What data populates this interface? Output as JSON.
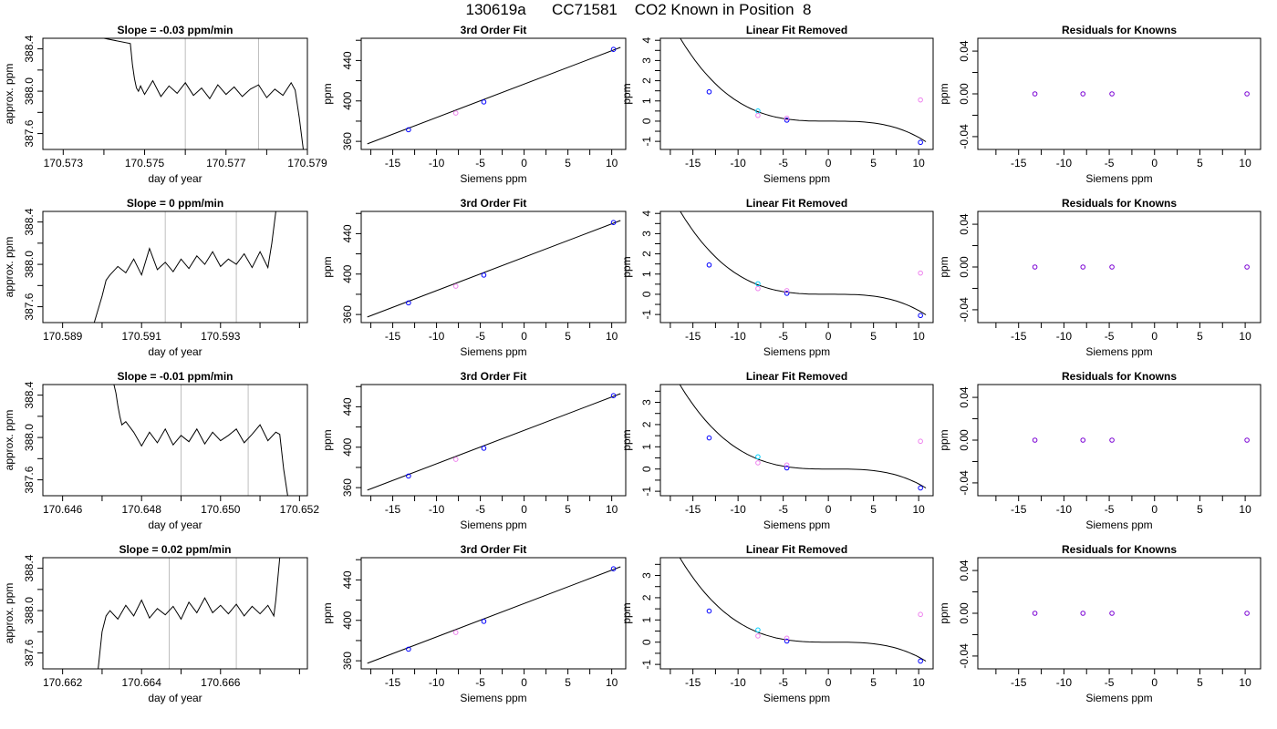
{
  "figure": {
    "title": "130619a      CC71581    CO2 Known in Position  8"
  },
  "chart_data": [
    {
      "type": "line",
      "title": "Slope =  -0.03  ppm/min",
      "xlabel": "day of year",
      "ylabel": "approx. ppm",
      "xlim": [
        170.5725,
        170.579
      ],
      "ylim": [
        387.45,
        388.5
      ],
      "xticks": [
        "170.573",
        "170.575",
        "170.577",
        "170.579"
      ],
      "yticks": [
        "387.6",
        "388.0",
        "388.4"
      ],
      "vlines": [
        170.576,
        170.5778
      ],
      "series": [
        {
          "x": [
            170.574,
            170.57465,
            170.5747,
            170.57475,
            170.5748,
            170.57485,
            170.5749,
            170.575,
            170.5752,
            170.5754,
            170.5756,
            170.5758,
            170.576,
            170.5762,
            170.5764,
            170.5766,
            170.5768,
            170.577,
            170.5772,
            170.5774,
            170.5776,
            170.5778,
            170.578,
            170.5782,
            170.5784,
            170.5786,
            170.5787,
            170.5788,
            170.5789
          ],
          "y": [
            388.5,
            388.45,
            388.25,
            388.12,
            388.03,
            388.0,
            388.05,
            387.97,
            388.1,
            387.95,
            388.05,
            387.98,
            388.08,
            387.96,
            388.03,
            387.93,
            388.06,
            387.97,
            388.04,
            387.95,
            388.02,
            388.06,
            387.94,
            388.02,
            387.96,
            388.08,
            388.01,
            387.75,
            387.45
          ]
        }
      ]
    },
    {
      "type": "scatter",
      "title": "3rd Order Fit",
      "xlabel": "Siemens ppm",
      "ylabel": "ppm",
      "xlim": [
        -18.6,
        11.6
      ],
      "ylim": [
        352,
        462
      ],
      "xticks": [
        "-15",
        "-10",
        "-5",
        "0",
        "5",
        "10"
      ],
      "yticks": [
        "360",
        "400",
        "440"
      ],
      "series": [
        {
          "x": [
            -13.2,
            -7.8,
            -4.6,
            10.2
          ],
          "y": [
            371.5,
            388.0,
            399.0,
            451.0
          ],
          "colors": [
            "#0000ff",
            "#ee82ee",
            "#0000ff",
            "#0000ff"
          ]
        }
      ],
      "fit_line": {
        "x": [
          -17.9,
          11.0
        ],
        "y": [
          357.5,
          453.0
        ]
      }
    },
    {
      "type": "scatter",
      "title": "Linear Fit Removed",
      "xlabel": "Siemens ppm",
      "ylabel": "ppm",
      "xlim": [
        -18.6,
        11.6
      ],
      "ylim": [
        -1.4,
        4.1
      ],
      "xticks": [
        "-15",
        "-10",
        "-5",
        "0",
        "5",
        "10"
      ],
      "yticks": [
        "-1",
        "0",
        "1",
        "2",
        "3",
        "4"
      ],
      "series": [
        {
          "name": "blue",
          "color": "#0000ff",
          "x": [
            -13.2,
            -4.6,
            10.2
          ],
          "y": [
            1.45,
            0.05,
            -1.05
          ]
        },
        {
          "name": "cyan",
          "color": "#00cfff",
          "x": [
            -7.8
          ],
          "y": [
            0.5
          ]
        },
        {
          "name": "violet",
          "color": "#ee82ee",
          "x": [
            -7.8,
            -4.6,
            10.2
          ],
          "y": [
            0.28,
            0.15,
            1.05
          ]
        }
      ],
      "curve": {
        "xs": 0.3,
        "a": 0.00088,
        "x0": -18.0,
        "x1": 10.8
      }
    },
    {
      "type": "scatter",
      "title": "Residuals for Knowns",
      "xlabel": "Siemens ppm",
      "ylabel": "ppm",
      "xlim": [
        -19.5,
        11.7
      ],
      "ylim": [
        -0.052,
        0.052
      ],
      "xticks": [
        "-15",
        "-10",
        "-5",
        "0",
        "5",
        "10"
      ],
      "yticks": [
        "-0.04",
        "0.00",
        "0.04"
      ],
      "series": [
        {
          "color": "#7a00d4",
          "x": [
            -13.2,
            -7.9,
            -4.7,
            10.2
          ],
          "y": [
            0,
            0,
            0,
            0
          ]
        }
      ]
    },
    {
      "type": "line",
      "title": "Slope =  0  ppm/min",
      "xlabel": "day of year",
      "ylabel": "approx. ppm",
      "xlim": [
        170.5885,
        170.5952
      ],
      "ylim": [
        387.45,
        388.5
      ],
      "xticks": [
        "170.589",
        "170.591",
        "170.593"
      ],
      "yticks": [
        "387.6",
        "388.0",
        "388.4"
      ],
      "vlines": [
        170.5916,
        170.5934
      ],
      "series": [
        {
          "x": [
            170.5898,
            170.59,
            170.5901,
            170.5902,
            170.5904,
            170.5906,
            170.5908,
            170.591,
            170.5912,
            170.5914,
            170.5916,
            170.5918,
            170.592,
            170.5922,
            170.5924,
            170.5926,
            170.5928,
            170.593,
            170.5932,
            170.5934,
            170.5936,
            170.5938,
            170.594,
            170.5942,
            170.5943,
            170.5944
          ],
          "y": [
            387.45,
            387.7,
            387.85,
            387.9,
            387.98,
            387.92,
            388.05,
            387.9,
            388.15,
            387.95,
            388.02,
            387.93,
            388.05,
            387.96,
            388.08,
            388.0,
            388.12,
            387.98,
            388.05,
            388.0,
            388.1,
            387.97,
            388.12,
            387.97,
            388.2,
            388.5
          ]
        }
      ]
    },
    {
      "type": "scatter",
      "title": "3rd Order Fit",
      "xlabel": "Siemens ppm",
      "ylabel": "ppm",
      "xlim": [
        -18.6,
        11.6
      ],
      "ylim": [
        352,
        462
      ],
      "xticks": [
        "-15",
        "-10",
        "-5",
        "0",
        "5",
        "10"
      ],
      "yticks": [
        "360",
        "400",
        "440"
      ],
      "series": [
        {
          "x": [
            -13.2,
            -7.8,
            -4.6,
            10.2
          ],
          "y": [
            371.5,
            388.0,
            399.0,
            451.0
          ],
          "colors": [
            "#0000ff",
            "#ee82ee",
            "#0000ff",
            "#0000ff"
          ]
        }
      ],
      "fit_line": {
        "x": [
          -17.9,
          11.0
        ],
        "y": [
          357.5,
          453.0
        ]
      }
    },
    {
      "type": "scatter",
      "title": "Linear Fit Removed",
      "xlabel": "Siemens ppm",
      "ylabel": "ppm",
      "xlim": [
        -18.6,
        11.6
      ],
      "ylim": [
        -1.4,
        4.1
      ],
      "xticks": [
        "-15",
        "-10",
        "-5",
        "0",
        "5",
        "10"
      ],
      "yticks": [
        "-1",
        "0",
        "1",
        "2",
        "3",
        "4"
      ],
      "series": [
        {
          "name": "blue",
          "color": "#0000ff",
          "x": [
            -13.2,
            -4.6,
            10.2
          ],
          "y": [
            1.45,
            0.05,
            -1.05
          ]
        },
        {
          "name": "cyan",
          "color": "#00cfff",
          "x": [
            -7.8
          ],
          "y": [
            0.52
          ]
        },
        {
          "name": "violet",
          "color": "#ee82ee",
          "x": [
            -7.8,
            -4.6,
            10.2
          ],
          "y": [
            0.28,
            0.18,
            1.05
          ]
        }
      ],
      "curve": {
        "xs": 0.3,
        "a": 0.00088,
        "x0": -18.0,
        "x1": 10.8
      }
    },
    {
      "type": "scatter",
      "title": "Residuals for Knowns",
      "xlabel": "Siemens ppm",
      "ylabel": "ppm",
      "xlim": [
        -19.5,
        11.7
      ],
      "ylim": [
        -0.052,
        0.052
      ],
      "xticks": [
        "-15",
        "-10",
        "-5",
        "0",
        "5",
        "10"
      ],
      "yticks": [
        "-0.04",
        "0.00",
        "0.04"
      ],
      "series": [
        {
          "color": "#7a00d4",
          "x": [
            -13.2,
            -7.9,
            -4.7,
            10.2
          ],
          "y": [
            0,
            0,
            0,
            0
          ]
        }
      ]
    },
    {
      "type": "line",
      "title": "Slope =  -0.01  ppm/min",
      "xlabel": "day of year",
      "ylabel": "approx. ppm",
      "xlim": [
        170.6455,
        170.6522
      ],
      "ylim": [
        387.45,
        388.5
      ],
      "xticks": [
        "170.646",
        "170.648",
        "170.650",
        "170.652"
      ],
      "yticks": [
        "387.6",
        "388.0",
        "388.4"
      ],
      "vlines": [
        170.649,
        170.6507
      ],
      "series": [
        {
          "x": [
            170.6473,
            170.64735,
            170.6474,
            170.64745,
            170.6475,
            170.6476,
            170.6478,
            170.648,
            170.6482,
            170.6484,
            170.6486,
            170.6488,
            170.649,
            170.6492,
            170.6494,
            170.6496,
            170.6498,
            170.65,
            170.6502,
            170.6504,
            170.6506,
            170.6508,
            170.651,
            170.6512,
            170.6514,
            170.6515,
            170.6516,
            170.6517
          ],
          "y": [
            388.5,
            388.42,
            388.3,
            388.2,
            388.12,
            388.15,
            388.05,
            387.92,
            388.05,
            387.95,
            388.08,
            387.93,
            388.02,
            387.96,
            388.08,
            387.94,
            388.05,
            387.97,
            388.02,
            388.08,
            387.95,
            388.03,
            388.12,
            387.97,
            388.05,
            388.03,
            387.7,
            387.45
          ]
        }
      ]
    },
    {
      "type": "scatter",
      "title": "3rd Order Fit",
      "xlabel": "Siemens ppm",
      "ylabel": "ppm",
      "xlim": [
        -18.6,
        11.6
      ],
      "ylim": [
        352,
        462
      ],
      "xticks": [
        "-15",
        "-10",
        "-5",
        "0",
        "5",
        "10"
      ],
      "yticks": [
        "360",
        "400",
        "440"
      ],
      "series": [
        {
          "x": [
            -13.2,
            -7.8,
            -4.6,
            10.2
          ],
          "y": [
            371.5,
            388.0,
            399.0,
            451.0
          ],
          "colors": [
            "#0000ff",
            "#ee82ee",
            "#0000ff",
            "#0000ff"
          ]
        }
      ],
      "fit_line": {
        "x": [
          -17.9,
          11.0
        ],
        "y": [
          357.5,
          453.0
        ]
      }
    },
    {
      "type": "scatter",
      "title": "Linear Fit Removed",
      "xlabel": "Siemens ppm",
      "ylabel": "ppm",
      "xlim": [
        -18.6,
        11.6
      ],
      "ylim": [
        -1.2,
        3.8
      ],
      "xticks": [
        "-15",
        "-10",
        "-5",
        "0",
        "5",
        "10"
      ],
      "yticks": [
        "-1",
        "0",
        "1",
        "2",
        "3"
      ],
      "series": [
        {
          "name": "blue",
          "color": "#0000ff",
          "x": [
            -13.2,
            -4.6,
            10.2
          ],
          "y": [
            1.4,
            0.05,
            -0.85
          ]
        },
        {
          "name": "cyan",
          "color": "#00cfff",
          "x": [
            -7.8
          ],
          "y": [
            0.55
          ]
        },
        {
          "name": "violet",
          "color": "#ee82ee",
          "x": [
            -7.8,
            -4.6,
            10.2
          ],
          "y": [
            0.28,
            0.18,
            1.25
          ]
        }
      ],
      "curve": {
        "xs": 0.5,
        "a": 0.00078,
        "x0": -18.0,
        "x1": 10.8
      }
    },
    {
      "type": "scatter",
      "title": "Residuals for Knowns",
      "xlabel": "Siemens ppm",
      "ylabel": "ppm",
      "xlim": [
        -19.5,
        11.7
      ],
      "ylim": [
        -0.052,
        0.052
      ],
      "xticks": [
        "-15",
        "-10",
        "-5",
        "0",
        "5",
        "10"
      ],
      "yticks": [
        "-0.04",
        "0.00",
        "0.04"
      ],
      "series": [
        {
          "color": "#7a00d4",
          "x": [
            -13.2,
            -7.9,
            -4.7,
            10.2
          ],
          "y": [
            0,
            0,
            0,
            0
          ]
        }
      ]
    },
    {
      "type": "line",
      "title": "Slope =  0.02  ppm/min",
      "xlabel": "day of year",
      "ylabel": "approx. ppm",
      "xlim": [
        170.6615,
        170.6682
      ],
      "ylim": [
        387.45,
        388.5
      ],
      "xticks": [
        "170.662",
        "170.664",
        "170.666"
      ],
      "yticks": [
        "387.6",
        "388.0",
        "388.4"
      ],
      "vlines": [
        170.6647,
        170.6664
      ],
      "series": [
        {
          "x": [
            170.6629,
            170.663,
            170.6631,
            170.6632,
            170.6634,
            170.6636,
            170.6638,
            170.664,
            170.6642,
            170.6644,
            170.6646,
            170.6648,
            170.665,
            170.6652,
            170.6654,
            170.6656,
            170.6658,
            170.666,
            170.6662,
            170.6664,
            170.6666,
            170.6668,
            170.667,
            170.6672,
            170.66735,
            170.6674,
            170.6675
          ],
          "y": [
            387.45,
            387.8,
            387.95,
            388.0,
            387.92,
            388.05,
            387.95,
            388.1,
            387.93,
            388.02,
            387.96,
            388.04,
            387.92,
            388.08,
            387.98,
            388.12,
            387.98,
            388.05,
            387.97,
            388.06,
            387.95,
            388.04,
            387.97,
            388.05,
            387.95,
            388.1,
            388.5
          ]
        }
      ]
    },
    {
      "type": "scatter",
      "title": "3rd Order Fit",
      "xlabel": "Siemens ppm",
      "ylabel": "ppm",
      "xlim": [
        -18.6,
        11.6
      ],
      "ylim": [
        352,
        462
      ],
      "xticks": [
        "-15",
        "-10",
        "-5",
        "0",
        "5",
        "10"
      ],
      "yticks": [
        "360",
        "400",
        "440"
      ],
      "series": [
        {
          "x": [
            -13.2,
            -7.8,
            -4.6,
            10.2
          ],
          "y": [
            371.5,
            388.0,
            399.0,
            451.0
          ],
          "colors": [
            "#0000ff",
            "#ee82ee",
            "#0000ff",
            "#0000ff"
          ]
        }
      ],
      "fit_line": {
        "x": [
          -17.9,
          11.0
        ],
        "y": [
          357.5,
          453.0
        ]
      }
    },
    {
      "type": "scatter",
      "title": "Linear Fit Removed",
      "xlabel": "Siemens ppm",
      "ylabel": "ppm",
      "xlim": [
        -18.6,
        11.6
      ],
      "ylim": [
        -1.2,
        3.8
      ],
      "xticks": [
        "-15",
        "-10",
        "-5",
        "0",
        "5",
        "10"
      ],
      "yticks": [
        "-1",
        "0",
        "1",
        "2",
        "3"
      ],
      "series": [
        {
          "name": "blue",
          "color": "#0000ff",
          "x": [
            -13.2,
            -4.6,
            10.2
          ],
          "y": [
            1.4,
            0.05,
            -0.85
          ]
        },
        {
          "name": "cyan",
          "color": "#00cfff",
          "x": [
            -7.8
          ],
          "y": [
            0.55
          ]
        },
        {
          "name": "violet",
          "color": "#ee82ee",
          "x": [
            -7.8,
            -4.6,
            10.2
          ],
          "y": [
            0.28,
            0.18,
            1.25
          ]
        }
      ],
      "curve": {
        "xs": 0.5,
        "a": 0.00078,
        "x0": -18.0,
        "x1": 10.8
      }
    },
    {
      "type": "scatter",
      "title": "Residuals for Knowns",
      "xlabel": "Siemens ppm",
      "ylabel": "ppm",
      "xlim": [
        -19.5,
        11.7
      ],
      "ylim": [
        -0.052,
        0.052
      ],
      "xticks": [
        "-15",
        "-10",
        "-5",
        "0",
        "5",
        "10"
      ],
      "yticks": [
        "-0.04",
        "0.00",
        "0.04"
      ],
      "series": [
        {
          "color": "#7a00d4",
          "x": [
            -13.2,
            -7.9,
            -4.7,
            10.2
          ],
          "y": [
            0,
            0,
            0,
            0
          ]
        }
      ]
    }
  ]
}
